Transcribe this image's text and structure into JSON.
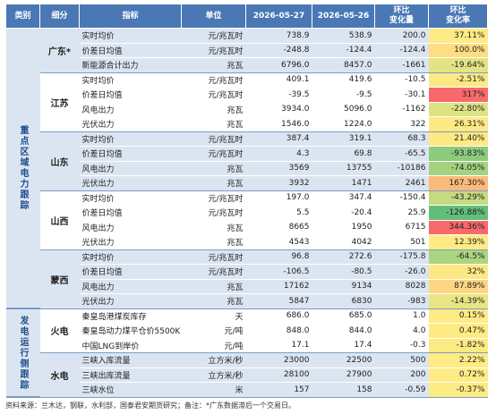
{
  "header": [
    "类别",
    "细分",
    "指标",
    "单位",
    "2026-05-27",
    "2026-05-26",
    "环比\n变化量",
    "环比\n变化率"
  ],
  "sections": [
    {
      "category": "重点区域电力跟踪",
      "groups": [
        {
          "name": "广东*",
          "rows": [
            {
              "indicator": "实时均价",
              "unit": "元/兆瓦时",
              "d1": "738.9",
              "d2": "538.9",
              "change": "200.0",
              "rate": "37.11%",
              "color": "#ffeb84"
            },
            {
              "indicator": "价差日均值",
              "unit": "元/兆瓦时",
              "d1": "-248.8",
              "d2": "-124.4",
              "change": "-124.4",
              "rate": "100.0%",
              "color": "#ffdd82"
            },
            {
              "indicator": "新能源合计出力",
              "unit": "兆瓦",
              "d1": "6796.0",
              "d2": "8457.0",
              "change": "-1661",
              "rate": "-19.64%",
              "color": "#e4e383"
            }
          ]
        },
        {
          "name": "江苏",
          "rows": [
            {
              "indicator": "实时均价",
              "unit": "元/兆瓦时",
              "d1": "409.1",
              "d2": "419.6",
              "change": "-10.5",
              "rate": "-2.51%",
              "color": "#fbe983"
            },
            {
              "indicator": "价差日均值",
              "unit": "元/兆瓦时",
              "d1": "-39.5",
              "d2": "-9.5",
              "change": "-30.1",
              "rate": "317%",
              "color": "#f8696b"
            },
            {
              "indicator": "风电出力",
              "unit": "兆瓦",
              "d1": "3934.0",
              "d2": "5096.0",
              "change": "-1162",
              "rate": "-22.80%",
              "color": "#dfe283"
            },
            {
              "indicator": "光伏出力",
              "unit": "兆瓦",
              "d1": "1546.0",
              "d2": "1224.0",
              "change": "322",
              "rate": "26.31%",
              "color": "#ffe984"
            }
          ]
        },
        {
          "name": "山东",
          "rows": [
            {
              "indicator": "实时均价",
              "unit": "元/兆瓦时",
              "d1": "387.4",
              "d2": "319.1",
              "change": "68.3",
              "rate": "21.40%",
              "color": "#ffe984"
            },
            {
              "indicator": "价差日均值",
              "unit": "元/兆瓦时",
              "d1": "4.3",
              "d2": "69.8",
              "change": "-65.5",
              "rate": "-93.83%",
              "color": "#8ccb7e"
            },
            {
              "indicator": "风电出力",
              "unit": "兆瓦",
              "d1": "3569",
              "d2": "13755",
              "change": "-10186",
              "rate": "-74.05%",
              "color": "#a4d27f"
            },
            {
              "indicator": "光伏出力",
              "unit": "兆瓦",
              "d1": "3932",
              "d2": "1471",
              "change": "2461",
              "rate": "167.30%",
              "color": "#fcba7a"
            }
          ]
        },
        {
          "name": "山西",
          "rows": [
            {
              "indicator": "实时均价",
              "unit": "元/兆瓦时",
              "d1": "197.0",
              "d2": "347.4",
              "change": "-150.4",
              "rate": "-43.29%",
              "color": "#c6da81"
            },
            {
              "indicator": "价差日均值",
              "unit": "元/兆瓦时",
              "d1": "5.5",
              "d2": "-20.4",
              "change": "25.9",
              "rate": "-126.88%",
              "color": "#63be7b"
            },
            {
              "indicator": "风电出力",
              "unit": "兆瓦",
              "d1": "8665",
              "d2": "1950",
              "change": "6715",
              "rate": "344.36%",
              "color": "#f8696b"
            },
            {
              "indicator": "光伏出力",
              "unit": "兆瓦",
              "d1": "4543",
              "d2": "4042",
              "change": "501",
              "rate": "12.39%",
              "color": "#ffea84"
            }
          ]
        },
        {
          "name": "蒙西",
          "rows": [
            {
              "indicator": "实时均价",
              "unit": "元/兆瓦时",
              "d1": "96.8",
              "d2": "272.6",
              "change": "-175.8",
              "rate": "-64.5%",
              "color": "#acd580"
            },
            {
              "indicator": "价差日均值",
              "unit": "元/兆瓦时",
              "d1": "-106.5",
              "d2": "-80.5",
              "change": "-26.0",
              "rate": "32%",
              "color": "#ffe884"
            },
            {
              "indicator": "风电出力",
              "unit": "兆瓦",
              "d1": "17162",
              "d2": "9134",
              "change": "8028",
              "rate": "87.89%",
              "color": "#fed580"
            },
            {
              "indicator": "光伏出力",
              "unit": "兆瓦",
              "d1": "5847",
              "d2": "6830",
              "change": "-983",
              "rate": "-14.39%",
              "color": "#e9e583"
            }
          ]
        }
      ]
    },
    {
      "category": "发电运行侧跟踪",
      "groups": [
        {
          "name": "火电",
          "rows": [
            {
              "indicator": "秦皇岛港煤炭库存",
              "unit": "天",
              "d1": "686.0",
              "d2": "685.0",
              "change": "1.0",
              "rate": "0.15%",
              "color": "#ffeb84"
            },
            {
              "indicator": "秦皇岛动力煤平仓价5500K",
              "unit": "元/吨",
              "d1": "848.0",
              "d2": "844.0",
              "change": "4.0",
              "rate": "0.47%",
              "color": "#ffeb84"
            },
            {
              "indicator": "中国LNG到岸价",
              "unit": "元/吨",
              "d1": "17.1",
              "d2": "17.4",
              "change": "-0.3",
              "rate": "-1.82%",
              "color": "#fcea84"
            }
          ]
        },
        {
          "name": "水电",
          "rows": [
            {
              "indicator": "三峡入库流量",
              "unit": "立方米/秒",
              "d1": "23000",
              "d2": "22500",
              "change": "500",
              "rate": "2.22%",
              "color": "#ffeb84"
            },
            {
              "indicator": "三峡出库流量",
              "unit": "立方米/秒",
              "d1": "28100",
              "d2": "27900",
              "change": "200",
              "rate": "0.72%",
              "color": "#ffeb84"
            },
            {
              "indicator": "三峡水位",
              "unit": "米",
              "d1": "157",
              "d2": "158",
              "change": "-0.59",
              "rate": "-0.37%",
              "color": "#fdeb84"
            }
          ]
        }
      ]
    }
  ],
  "footer": "资料来源：兰木达，钢联，水利部，国泰君安期货研究；备注：*广东数据滞后一个交易日。"
}
